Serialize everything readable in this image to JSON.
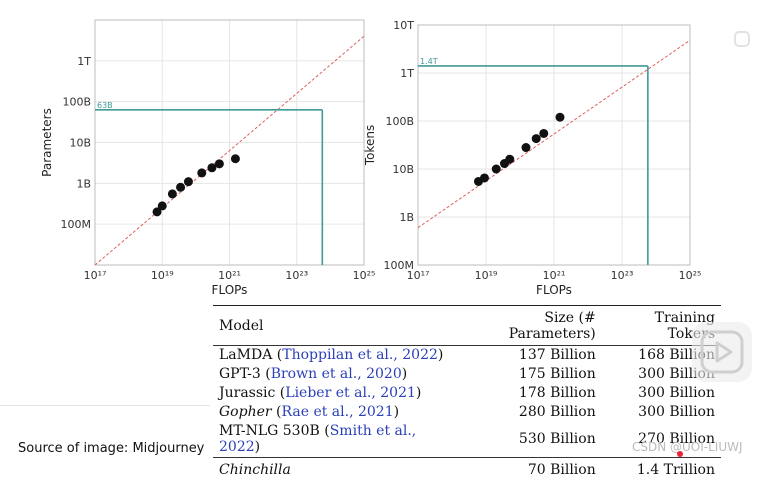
{
  "chart_data": [
    {
      "type": "scatter",
      "xlabel": "FLOPs",
      "ylabel": "Parameters",
      "x_scale": "log",
      "y_scale": "log",
      "xlim": [
        1e+17,
        1e+25
      ],
      "ylim": [
        10000000.0,
        10000000000000.0
      ],
      "x_ticks": [
        {
          "value": 1e+17,
          "label": "10¹⁷"
        },
        {
          "value": 1e+19,
          "label": "10¹⁹"
        },
        {
          "value": 1e+21,
          "label": "10²¹"
        },
        {
          "value": 1e+23,
          "label": "10²³"
        },
        {
          "value": 1e+25,
          "label": "10²⁵"
        }
      ],
      "y_ticks": [
        {
          "value": 100000000.0,
          "label": "100M"
        },
        {
          "value": 1000000000.0,
          "label": "1B"
        },
        {
          "value": 10000000000.0,
          "label": "10B"
        },
        {
          "value": 100000000000.0,
          "label": "100B"
        },
        {
          "value": 1000000000000.0,
          "label": "1T"
        }
      ],
      "grid": true,
      "points": [
        {
          "x": 7e+18,
          "y": 200000000.0
        },
        {
          "x": 1e+19,
          "y": 280000000.0
        },
        {
          "x": 2e+19,
          "y": 550000000.0
        },
        {
          "x": 3.5e+19,
          "y": 800000000.0
        },
        {
          "x": 6e+19,
          "y": 1100000000.0
        },
        {
          "x": 1.5e+20,
          "y": 1800000000.0
        },
        {
          "x": 3e+20,
          "y": 2400000000.0
        },
        {
          "x": 5e+20,
          "y": 3000000000.0
        },
        {
          "x": 1.5e+21,
          "y": 4000000000.0
        }
      ],
      "trend": {
        "from": [
          1e+17,
          10000000.0
        ],
        "to": [
          1e+25,
          4000000000000.0
        ]
      },
      "projection": {
        "x": 5.76e+23,
        "y": 63000000000.0,
        "label": "63B"
      },
      "colors": {
        "point": "#111111",
        "trend": "#e06060",
        "projection": "#3f9a98",
        "grid": "#e6e6e6"
      }
    },
    {
      "type": "scatter",
      "xlabel": "FLOPs",
      "ylabel": "Tokens",
      "x_scale": "log",
      "y_scale": "log",
      "xlim": [
        1e+17,
        1e+25
      ],
      "ylim": [
        100000000.0,
        10000000000000.0
      ],
      "x_ticks": [
        {
          "value": 1e+17,
          "label": "10¹⁷"
        },
        {
          "value": 1e+19,
          "label": "10¹⁹"
        },
        {
          "value": 1e+21,
          "label": "10²¹"
        },
        {
          "value": 1e+23,
          "label": "10²³"
        },
        {
          "value": 1e+25,
          "label": "10²⁵"
        }
      ],
      "y_ticks": [
        {
          "value": 100000000.0,
          "label": "100M"
        },
        {
          "value": 1000000000.0,
          "label": "1B"
        },
        {
          "value": 10000000000.0,
          "label": "10B"
        },
        {
          "value": 100000000000.0,
          "label": "100B"
        },
        {
          "value": 1000000000000.0,
          "label": "1T"
        },
        {
          "value": 10000000000000.0,
          "label": "10T"
        }
      ],
      "grid": true,
      "points": [
        {
          "x": 6e+18,
          "y": 5500000000.0
        },
        {
          "x": 9e+18,
          "y": 6500000000.0
        },
        {
          "x": 2e+19,
          "y": 10000000000.0
        },
        {
          "x": 3.5e+19,
          "y": 13000000000.0
        },
        {
          "x": 5e+19,
          "y": 16000000000.0
        },
        {
          "x": 1.5e+20,
          "y": 28000000000.0
        },
        {
          "x": 3e+20,
          "y": 43000000000.0
        },
        {
          "x": 5e+20,
          "y": 55000000000.0
        },
        {
          "x": 1.5e+21,
          "y": 120000000000.0
        }
      ],
      "trend": {
        "from": [
          1e+17,
          600000000.0
        ],
        "to": [
          1e+25,
          4800000000000.0
        ]
      },
      "projection": {
        "x": 5.76e+23,
        "y": 1400000000000.0,
        "label": "1.4T"
      },
      "colors": {
        "point": "#111111",
        "trend": "#e06060",
        "projection": "#3f9a98",
        "grid": "#e6e6e6"
      }
    },
    {
      "type": "table",
      "headers": {
        "model": "Model",
        "size": "Size (# Parameters)",
        "tokens": "Training Tokers"
      },
      "rows": [
        {
          "name": "LaMDA",
          "cite": "Thoppilan et al., 2022",
          "size": "137 Billion",
          "tokens": "168 Billion",
          "italic": false
        },
        {
          "name": "GPT-3",
          "cite": "Brown et al., 2020",
          "size": "175 Billion",
          "tokens": "300 Billion",
          "italic": false
        },
        {
          "name": "Jurassic",
          "cite": "Lieber et al., 2021",
          "size": "178 Billion",
          "tokens": "300 Billion",
          "italic": false
        },
        {
          "name": "Gopher",
          "cite": "Rae et al., 2021",
          "size": "280 Billion",
          "tokens": "300 Billion",
          "italic": true
        },
        {
          "name": "MT-NLG 530B",
          "cite": "Smith et al., 2022",
          "size": "530 Billion",
          "tokens": "270 Billion",
          "italic": false
        }
      ],
      "final_row": {
        "name": "Chinchilla",
        "size": "70 Billion",
        "tokens": "1.4 Trillion"
      }
    }
  ],
  "footer": {
    "source": "Source of image: Midjourney",
    "watermark": "CSDN @UOI-LIUWJ"
  }
}
